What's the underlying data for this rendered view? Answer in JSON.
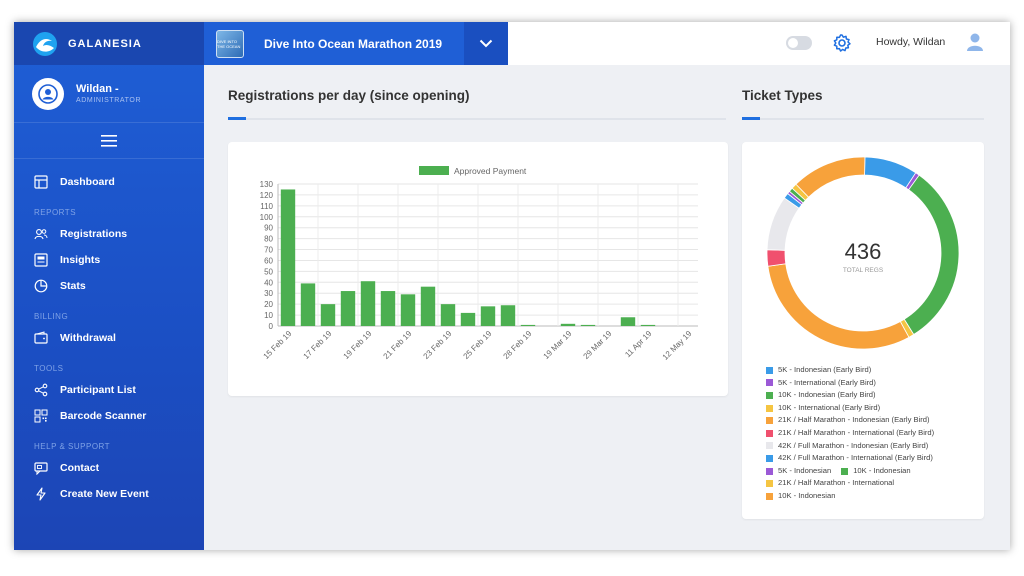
{
  "brand": {
    "name": "GALANESIA"
  },
  "profile": {
    "name": "Wildan -",
    "role": "ADMINISTRATOR"
  },
  "nav": {
    "dashboard": "Dashboard",
    "reports_header": "REPORTS",
    "registrations": "Registrations",
    "insights": "Insights",
    "stats": "Stats",
    "billing_header": "BILLING",
    "withdrawal": "Withdrawal",
    "tools_header": "TOOLS",
    "participant_list": "Participant List",
    "barcode_scanner": "Barcode Scanner",
    "help_header": "HELP & SUPPORT",
    "contact": "Contact",
    "create_event": "Create New Event"
  },
  "topbar": {
    "event_title": "Dive Into Ocean Marathon 2019",
    "event_thumb_text": "DIVE INTO THE OCEAN",
    "greeting": "Howdy, Wildan"
  },
  "main": {
    "registrations_title": "Registrations per day (since opening)",
    "tickets_title": "Ticket Types"
  },
  "chart_data": [
    {
      "type": "bar",
      "title": "",
      "legend": "Approved Payment",
      "legend_position": "top",
      "color": "#4caf50",
      "ylim": [
        0,
        130
      ],
      "yticks": [
        0,
        10,
        20,
        30,
        40,
        50,
        60,
        70,
        80,
        90,
        100,
        110,
        120,
        130
      ],
      "xtick_labels": [
        "15 Feb 19",
        "17 Feb 19",
        "19 Feb 19",
        "21 Feb 19",
        "23 Feb 19",
        "25 Feb 19",
        "28 Feb 19",
        "19 Mar 19",
        "29 Mar 19",
        "11 Apr 19",
        "12 May 19"
      ],
      "values": [
        125,
        39,
        20,
        32,
        41,
        32,
        29,
        36,
        20,
        12,
        18,
        19,
        1,
        0,
        2,
        1,
        0,
        8,
        1,
        0,
        0
      ],
      "grid": true
    },
    {
      "type": "pie",
      "variant": "donut",
      "center_value": "436",
      "center_label": "TOTAL REGS",
      "slices": [
        {
          "label": "5K - Indonesian (Early Bird)",
          "value": 39,
          "color": "#3a9be8"
        },
        {
          "label": "5K - International (Early Bird)",
          "value": 3,
          "color": "#9b59d6"
        },
        {
          "label": "10K - Indonesian (Early Bird)",
          "value": 136,
          "color": "#4caf50"
        },
        {
          "label": "10K - International (Early Bird)",
          "value": 4,
          "color": "#f5c542"
        },
        {
          "label": "21K / Half Marathon - Indonesian (Early Bird)",
          "value": 134,
          "color": "#f7a23b"
        },
        {
          "label": "21K / Half Marathon - International (Early Bird)",
          "value": 12,
          "color": "#f0506e"
        },
        {
          "label": "42K / Full Marathon - Indonesian (Early Bird)",
          "value": 40,
          "color": "#e8e8ec"
        },
        {
          "label": "42K / Full Marathon - International (Early Bird)",
          "value": 4,
          "color": "#3a9be8"
        },
        {
          "label": "5K - Indonesian",
          "value": 2,
          "color": "#9b59d6"
        },
        {
          "label": "10K - Indonesian",
          "value": 3,
          "color": "#4caf50"
        },
        {
          "label": "21K / Half Marathon - International",
          "value": 4,
          "color": "#f5c542"
        },
        {
          "label": "10K - Indonesian",
          "value": 55,
          "color": "#f7a23b"
        }
      ]
    }
  ]
}
